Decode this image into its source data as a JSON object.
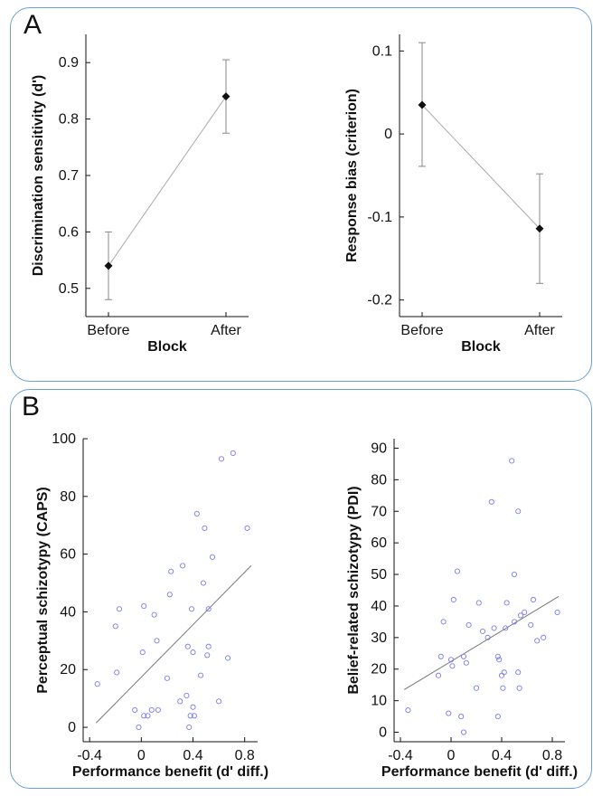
{
  "panels": [
    {
      "letter": "A"
    },
    {
      "letter": "B"
    }
  ],
  "chart_data": [
    {
      "type": "line",
      "panel": "A",
      "categories": [
        "Before",
        "After"
      ],
      "values": [
        0.54,
        0.84
      ],
      "error_low": [
        0.48,
        0.775
      ],
      "error_high": [
        0.6,
        0.905
      ],
      "xlabel": "Block",
      "ylabel": "Discrimination sensitivity (d')",
      "ylim": [
        0.45,
        0.95
      ],
      "yticks": [
        0.5,
        0.6,
        0.7,
        0.8,
        0.9
      ],
      "ytick_labels": [
        "0.5",
        "0.6",
        "0.7",
        "0.8",
        "0.9"
      ],
      "colors": {
        "line": "#aaaaaa",
        "marker": "#111111"
      }
    },
    {
      "type": "line",
      "panel": "A",
      "categories": [
        "Before",
        "After"
      ],
      "values": [
        0.035,
        -0.114
      ],
      "error_low": [
        -0.039,
        -0.18
      ],
      "error_high": [
        0.11,
        -0.048
      ],
      "xlabel": "Block",
      "ylabel": "Response bias (criterion)",
      "ylim": [
        -0.22,
        0.12
      ],
      "yticks": [
        -0.2,
        -0.1,
        0,
        0.1
      ],
      "ytick_labels": [
        "-0.2",
        "-0.1",
        "0",
        "0.1"
      ],
      "colors": {
        "line": "#aaaaaa",
        "marker": "#111111"
      }
    },
    {
      "type": "scatter",
      "panel": "B",
      "xlabel": "Performance benefit (d' diff.)",
      "ylabel": "Perceptual schizotypy (CAPS)",
      "xlim": [
        -0.45,
        0.9
      ],
      "ylim": [
        -5,
        100
      ],
      "xticks": [
        -0.4,
        0,
        0.4,
        0.8
      ],
      "xtick_labels": [
        "-0.4",
        "0",
        "0.4",
        "0.8"
      ],
      "yticks": [
        0,
        20,
        40,
        60,
        80,
        100
      ],
      "ytick_labels": [
        "0",
        "20",
        "40",
        "60",
        "80",
        "100"
      ],
      "fit_line": {
        "x": [
          -0.35,
          0.85
        ],
        "y": [
          1.5,
          56
        ]
      },
      "points": [
        {
          "x": -0.34,
          "y": 15
        },
        {
          "x": -0.2,
          "y": 35
        },
        {
          "x": -0.19,
          "y": 19
        },
        {
          "x": -0.17,
          "y": 41
        },
        {
          "x": -0.05,
          "y": 6
        },
        {
          "x": -0.02,
          "y": 0
        },
        {
          "x": 0.01,
          "y": 26
        },
        {
          "x": 0.02,
          "y": 42
        },
        {
          "x": 0.02,
          "y": 4
        },
        {
          "x": 0.05,
          "y": 4
        },
        {
          "x": 0.08,
          "y": 6
        },
        {
          "x": 0.1,
          "y": 39
        },
        {
          "x": 0.12,
          "y": 30
        },
        {
          "x": 0.13,
          "y": 6
        },
        {
          "x": 0.2,
          "y": 17
        },
        {
          "x": 0.22,
          "y": 46
        },
        {
          "x": 0.23,
          "y": 54
        },
        {
          "x": 0.3,
          "y": 9
        },
        {
          "x": 0.32,
          "y": 56
        },
        {
          "x": 0.35,
          "y": 11
        },
        {
          "x": 0.36,
          "y": 28
        },
        {
          "x": 0.37,
          "y": 0
        },
        {
          "x": 0.38,
          "y": 4
        },
        {
          "x": 0.39,
          "y": 41
        },
        {
          "x": 0.4,
          "y": 26
        },
        {
          "x": 0.4,
          "y": 7
        },
        {
          "x": 0.41,
          "y": 4
        },
        {
          "x": 0.43,
          "y": 74
        },
        {
          "x": 0.46,
          "y": 18
        },
        {
          "x": 0.48,
          "y": 50
        },
        {
          "x": 0.49,
          "y": 69
        },
        {
          "x": 0.51,
          "y": 25
        },
        {
          "x": 0.52,
          "y": 28
        },
        {
          "x": 0.52,
          "y": 41
        },
        {
          "x": 0.55,
          "y": 59
        },
        {
          "x": 0.6,
          "y": 9
        },
        {
          "x": 0.62,
          "y": 93
        },
        {
          "x": 0.67,
          "y": 24
        },
        {
          "x": 0.71,
          "y": 95
        },
        {
          "x": 0.82,
          "y": 69
        }
      ],
      "colors": {
        "points": "#7b7bf0",
        "fit": "#777777"
      }
    },
    {
      "type": "scatter",
      "panel": "B",
      "xlabel": "Performance benefit (d' diff.)",
      "ylabel": "Belief-related schizotypy (PDI)",
      "xlim": [
        -0.45,
        0.9
      ],
      "ylim": [
        -3,
        93
      ],
      "xticks": [
        -0.4,
        0,
        0.4,
        0.8
      ],
      "xtick_labels": [
        "-0.4",
        "0",
        "0.4",
        "0.8"
      ],
      "yticks": [
        0,
        10,
        20,
        30,
        40,
        50,
        60,
        70,
        80,
        90
      ],
      "ytick_labels": [
        "0",
        "10",
        "20",
        "30",
        "40",
        "50",
        "60",
        "70",
        "80",
        "90"
      ],
      "fit_line": {
        "x": [
          -0.37,
          0.85
        ],
        "y": [
          13.5,
          43
        ]
      },
      "points": [
        {
          "x": -0.34,
          "y": 7
        },
        {
          "x": -0.1,
          "y": 18
        },
        {
          "x": -0.08,
          "y": 24
        },
        {
          "x": -0.06,
          "y": 35
        },
        {
          "x": -0.02,
          "y": 6
        },
        {
          "x": 0.0,
          "y": 23
        },
        {
          "x": 0.01,
          "y": 21
        },
        {
          "x": 0.02,
          "y": 42
        },
        {
          "x": 0.05,
          "y": 51
        },
        {
          "x": 0.08,
          "y": 5
        },
        {
          "x": 0.1,
          "y": 0
        },
        {
          "x": 0.1,
          "y": 24
        },
        {
          "x": 0.12,
          "y": 22
        },
        {
          "x": 0.14,
          "y": 34
        },
        {
          "x": 0.2,
          "y": 14
        },
        {
          "x": 0.22,
          "y": 41
        },
        {
          "x": 0.25,
          "y": 32
        },
        {
          "x": 0.29,
          "y": 30
        },
        {
          "x": 0.32,
          "y": 73
        },
        {
          "x": 0.34,
          "y": 33
        },
        {
          "x": 0.37,
          "y": 5
        },
        {
          "x": 0.37,
          "y": 24
        },
        {
          "x": 0.38,
          "y": 23
        },
        {
          "x": 0.4,
          "y": 18
        },
        {
          "x": 0.41,
          "y": 14
        },
        {
          "x": 0.42,
          "y": 19
        },
        {
          "x": 0.43,
          "y": 33
        },
        {
          "x": 0.44,
          "y": 41
        },
        {
          "x": 0.48,
          "y": 86
        },
        {
          "x": 0.5,
          "y": 35
        },
        {
          "x": 0.5,
          "y": 50
        },
        {
          "x": 0.53,
          "y": 70
        },
        {
          "x": 0.53,
          "y": 19
        },
        {
          "x": 0.54,
          "y": 14
        },
        {
          "x": 0.55,
          "y": 37
        },
        {
          "x": 0.58,
          "y": 38
        },
        {
          "x": 0.63,
          "y": 34
        },
        {
          "x": 0.65,
          "y": 42
        },
        {
          "x": 0.68,
          "y": 29
        },
        {
          "x": 0.73,
          "y": 30
        },
        {
          "x": 0.84,
          "y": 38
        }
      ],
      "colors": {
        "points": "#7b7bf0",
        "fit": "#777777"
      }
    }
  ]
}
